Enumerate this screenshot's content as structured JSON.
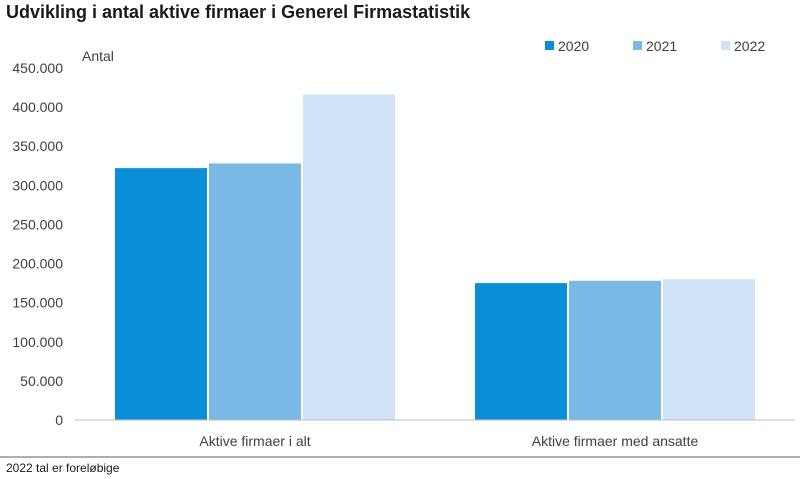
{
  "title": "Udvikling i antal aktive firmaer i Generel Firmastatistik",
  "footnote": "2022 tal er foreløbige",
  "colors": {
    "background": "#ffffff",
    "axis": "#bfbfbf",
    "divider": "#7f9bb0"
  },
  "chart_data": {
    "type": "bar",
    "categories": [
      "Aktive firmaer i alt",
      "Aktive firmaer med ansatte"
    ],
    "series": [
      {
        "name": "2020",
        "color": "#0a8fd6",
        "values": [
          322000,
          175000
        ]
      },
      {
        "name": "2021",
        "color": "#7ab8e6",
        "values": [
          328000,
          178000
        ]
      },
      {
        "name": "2022",
        "color": "#cfe2f6",
        "values": [
          416000,
          180000
        ]
      }
    ],
    "ylabel": "Antal",
    "ylim": [
      0,
      450000
    ],
    "y_ticks": [
      "0",
      "50.000",
      "100.000",
      "150.000",
      "200.000",
      "250.000",
      "300.000",
      "350.000",
      "400.000",
      "450.000"
    ],
    "legend_position": "top-right",
    "grid": false
  }
}
